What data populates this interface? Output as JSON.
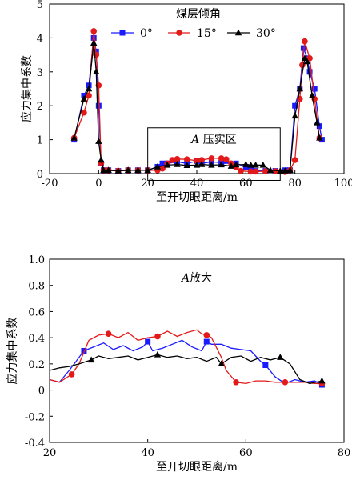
{
  "chart_data": [
    {
      "type": "line",
      "title": "",
      "legend_title": "煤层倾角",
      "xlabel": "至开切眼距离/m",
      "ylabel": "应力集中系数",
      "xlim": [
        -20,
        100
      ],
      "ylim": [
        0,
        5
      ],
      "xticks": [
        "-20",
        "0",
        "20",
        "40",
        "60",
        "80",
        "100"
      ],
      "yticks": [
        "0",
        "1",
        "2",
        "3",
        "4",
        "5"
      ],
      "legend_position": "top",
      "box_label_italic": "A",
      "box_label": "压实区",
      "box_range": {
        "x": [
          20,
          74
        ],
        "y": [
          -0.2,
          1.35
        ]
      },
      "series": [
        {
          "name": "0°",
          "color": "#1a1aff",
          "marker": "square",
          "x": [
            -10,
            -6,
            -4,
            -2,
            -1,
            0,
            1,
            2,
            4,
            8,
            12,
            16,
            20,
            24,
            26,
            28,
            32,
            36,
            40,
            42,
            46,
            50,
            52,
            56,
            60,
            62,
            64,
            68,
            72,
            76,
            78,
            80,
            82,
            83.5,
            85,
            86,
            88,
            90,
            91
          ],
          "y": [
            1.0,
            2.3,
            2.6,
            4.0,
            3.6,
            2.0,
            0.3,
            0.1,
            0.1,
            0.08,
            0.1,
            0.1,
            0.1,
            0.2,
            0.3,
            0.3,
            0.35,
            0.3,
            0.37,
            0.3,
            0.35,
            0.32,
            0.37,
            0.3,
            0.2,
            0.1,
            0.08,
            0.08,
            0.08,
            0.1,
            0.1,
            2.0,
            2.5,
            3.7,
            3.4,
            3.0,
            2.5,
            1.4,
            1.0
          ]
        },
        {
          "name": "15°",
          "color": "#e21a1a",
          "marker": "circle",
          "x": [
            -10,
            -6,
            -4,
            -2,
            -1,
            0,
            1,
            2,
            4,
            8,
            12,
            16,
            20,
            24,
            26,
            28,
            30,
            32,
            36,
            40,
            42,
            46,
            50,
            52,
            54,
            56,
            58,
            62,
            64,
            68,
            72,
            76,
            78,
            80,
            82,
            83,
            84,
            86,
            88,
            90
          ],
          "y": [
            1.05,
            1.8,
            2.3,
            4.2,
            3.5,
            2.6,
            0.3,
            0.1,
            0.1,
            0.08,
            0.1,
            0.1,
            0.1,
            0.1,
            0.15,
            0.3,
            0.4,
            0.43,
            0.42,
            0.38,
            0.4,
            0.45,
            0.45,
            0.42,
            0.3,
            0.2,
            0.08,
            0.06,
            0.06,
            0.07,
            0.07,
            0.05,
            0.1,
            0.4,
            2.2,
            3.2,
            3.9,
            3.4,
            2.2,
            1.05
          ]
        },
        {
          "name": "30°",
          "color": "#000000",
          "marker": "triangle",
          "x": [
            -10,
            -6,
            -4,
            -2,
            -1,
            0,
            1,
            2,
            4,
            8,
            12,
            16,
            20,
            24,
            28,
            32,
            36,
            40,
            42,
            46,
            50,
            54,
            56,
            60,
            62,
            64,
            67,
            70,
            74,
            76,
            78,
            80,
            82,
            84,
            85,
            87,
            89,
            90
          ],
          "y": [
            1.05,
            2.2,
            2.5,
            3.85,
            3.0,
            0.95,
            0.4,
            0.1,
            0.1,
            0.08,
            0.1,
            0.1,
            0.1,
            0.2,
            0.25,
            0.27,
            0.24,
            0.25,
            0.27,
            0.25,
            0.26,
            0.22,
            0.26,
            0.27,
            0.25,
            0.25,
            0.25,
            0.1,
            0.08,
            0.08,
            0.1,
            1.7,
            2.5,
            3.4,
            3.3,
            2.3,
            1.5,
            1.05
          ]
        }
      ]
    },
    {
      "type": "line",
      "title": "",
      "title_italic": "A",
      "title_text": "放大",
      "xlabel": "至开切眼距离/m",
      "ylabel": "应力集中系数",
      "xlim": [
        20,
        80
      ],
      "ylim": [
        -0.4,
        1.0
      ],
      "xticks": [
        "20",
        "40",
        "60",
        "80"
      ],
      "yticks": [
        "-0.4",
        "-0.2",
        "0",
        "0.2",
        "0.4",
        "0.6",
        "0.8",
        "1.0"
      ],
      "series": [
        {
          "name": "0°",
          "color": "#1a1aff",
          "marker": "square",
          "marker_x": [
            27,
            40,
            52,
            64,
            75.5
          ],
          "x": [
            20,
            22,
            24,
            25,
            27,
            29,
            31,
            33,
            35,
            37,
            39,
            40,
            41,
            43,
            45,
            47,
            49,
            51,
            52,
            53,
            55,
            57,
            59,
            61,
            63,
            64,
            66,
            68,
            70,
            72,
            74,
            75.5
          ],
          "y": [
            0.08,
            0.06,
            0.15,
            0.2,
            0.3,
            0.33,
            0.36,
            0.31,
            0.34,
            0.3,
            0.33,
            0.37,
            0.3,
            0.32,
            0.35,
            0.38,
            0.33,
            0.3,
            0.37,
            0.35,
            0.35,
            0.32,
            0.31,
            0.3,
            0.22,
            0.19,
            0.1,
            0.05,
            0.08,
            0.06,
            0.07,
            0.04
          ]
        },
        {
          "name": "15°",
          "color": "#e21a1a",
          "marker": "circle",
          "marker_x": [
            24.5,
            32,
            42,
            52,
            58,
            68,
            75.5
          ],
          "x": [
            20,
            22,
            24.5,
            26,
            28,
            30,
            32,
            34,
            36,
            38,
            40,
            42,
            44,
            46,
            48,
            50,
            51,
            52,
            53,
            55,
            56,
            58,
            60,
            62,
            64,
            66,
            68,
            70,
            72,
            74,
            75.5
          ],
          "y": [
            0.08,
            0.06,
            0.12,
            0.2,
            0.38,
            0.42,
            0.43,
            0.4,
            0.44,
            0.38,
            0.4,
            0.41,
            0.45,
            0.41,
            0.44,
            0.46,
            0.43,
            0.42,
            0.4,
            0.25,
            0.15,
            0.06,
            0.05,
            0.07,
            0.07,
            0.06,
            0.06,
            0.06,
            0.06,
            0.05,
            0.05
          ]
        },
        {
          "name": "30°",
          "color": "#000000",
          "marker": "triangle",
          "marker_x": [
            28.5,
            42,
            55,
            67,
            75.5
          ],
          "x": [
            20,
            22,
            24,
            26,
            28.5,
            30,
            32,
            34,
            36,
            38,
            40,
            42,
            44,
            46,
            48,
            50,
            52,
            54,
            55,
            57,
            59,
            61,
            63,
            65,
            67,
            69,
            71,
            73,
            75.5
          ],
          "y": [
            0.15,
            0.17,
            0.18,
            0.2,
            0.23,
            0.26,
            0.24,
            0.25,
            0.26,
            0.23,
            0.25,
            0.27,
            0.25,
            0.26,
            0.24,
            0.25,
            0.22,
            0.25,
            0.2,
            0.25,
            0.26,
            0.22,
            0.25,
            0.23,
            0.25,
            0.2,
            0.08,
            0.05,
            0.07
          ]
        }
      ]
    }
  ]
}
